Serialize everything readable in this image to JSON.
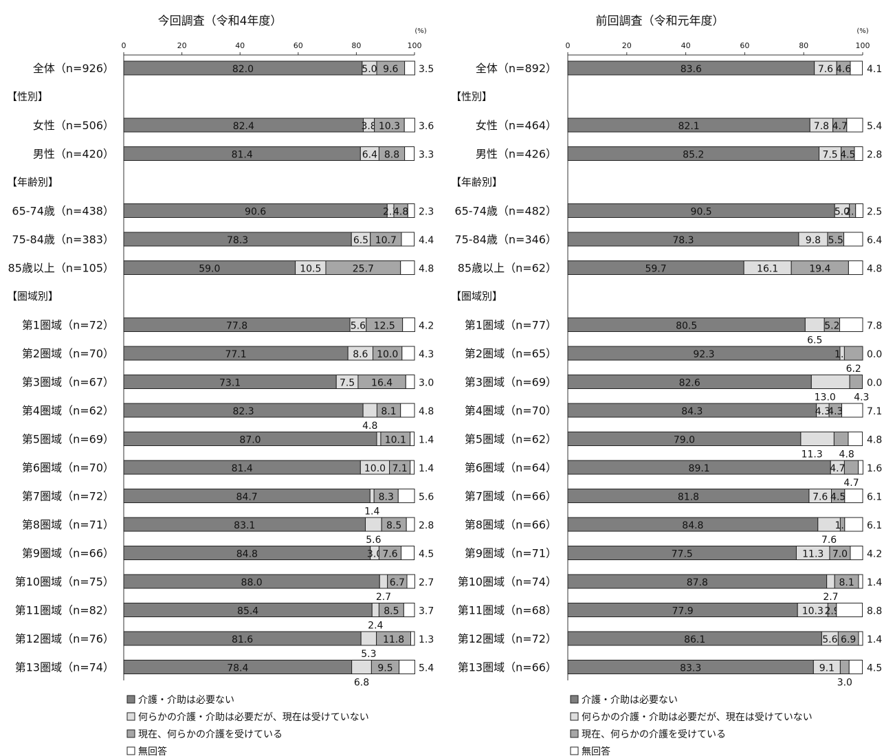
{
  "chart_data": [
    {
      "type": "stacked-horizontal-bar",
      "title": "今回調査（令和4年度）",
      "unit_label": "(%)",
      "xlim": [
        0,
        100
      ],
      "xticks": [
        0,
        20,
        40,
        60,
        80,
        100
      ],
      "colors": [
        "#7f7f7f",
        "#dedede",
        "#a6a6a6",
        "#ffffff"
      ],
      "series_names": [
        "介護・介助は必要ない",
        "何らかの介護・介助は必要だが、現在は受けていない",
        "現在、何らかの介護を受けている",
        "無回答"
      ],
      "rows": [
        {
          "type": "bar",
          "label": "全体（n=926）",
          "values": [
            82.0,
            5.0,
            9.6,
            3.5
          ]
        },
        {
          "type": "section",
          "label": "【性別】"
        },
        {
          "type": "bar",
          "label": "女性（n=506）",
          "values": [
            82.4,
            3.8,
            10.3,
            3.6
          ]
        },
        {
          "type": "bar",
          "label": "男性（n=420）",
          "values": [
            81.4,
            6.4,
            8.8,
            3.3
          ]
        },
        {
          "type": "section",
          "label": "【年齢別】"
        },
        {
          "type": "bar",
          "label": "65-74歳（n=438）",
          "values": [
            90.6,
            2.3,
            4.8,
            2.3
          ]
        },
        {
          "type": "bar",
          "label": "75-84歳（n=383）",
          "values": [
            78.3,
            6.5,
            10.7,
            4.4
          ]
        },
        {
          "type": "bar",
          "label": "85歳以上（n=105）",
          "values": [
            59.0,
            10.5,
            25.7,
            4.8
          ]
        },
        {
          "type": "section",
          "label": "【圏域別】"
        },
        {
          "type": "bar",
          "label": "第1圏域（n=72）",
          "values": [
            77.8,
            5.6,
            12.5,
            4.2
          ]
        },
        {
          "type": "bar",
          "label": "第2圏域（n=70）",
          "values": [
            77.1,
            8.6,
            10.0,
            4.3
          ]
        },
        {
          "type": "bar",
          "label": "第3圏域（n=67）",
          "values": [
            73.1,
            7.5,
            16.4,
            3.0
          ]
        },
        {
          "type": "bar",
          "label": "第4圏域（n=62）",
          "values": [
            82.3,
            4.8,
            8.1,
            4.8
          ]
        },
        {
          "type": "bar",
          "label": "第5圏域（n=69）",
          "values": [
            87.0,
            1.4,
            10.1,
            1.4
          ]
        },
        {
          "type": "bar",
          "label": "第6圏域（n=70）",
          "values": [
            81.4,
            10.0,
            7.1,
            1.4
          ]
        },
        {
          "type": "bar",
          "label": "第7圏域（n=72）",
          "values": [
            84.7,
            1.4,
            8.3,
            5.6
          ]
        },
        {
          "type": "bar",
          "label": "第8圏域（n=71）",
          "values": [
            83.1,
            5.6,
            8.5,
            2.8
          ]
        },
        {
          "type": "bar",
          "label": "第9圏域（n=66）",
          "values": [
            84.8,
            3.0,
            7.6,
            4.5
          ]
        },
        {
          "type": "bar",
          "label": "第10圏域（n=75）",
          "values": [
            88.0,
            2.7,
            6.7,
            2.7
          ]
        },
        {
          "type": "bar",
          "label": "第11圏域（n=82）",
          "values": [
            85.4,
            2.4,
            8.5,
            3.7
          ]
        },
        {
          "type": "bar",
          "label": "第12圏域（n=76）",
          "values": [
            81.6,
            5.3,
            11.8,
            1.3
          ]
        },
        {
          "type": "bar",
          "label": "第13圏域（n=74）",
          "values": [
            78.4,
            6.8,
            9.5,
            5.4
          ]
        }
      ]
    },
    {
      "type": "stacked-horizontal-bar",
      "title": "前回調査（令和元年度）",
      "unit_label": "(%)",
      "xlim": [
        0,
        100
      ],
      "xticks": [
        0,
        20,
        40,
        60,
        80,
        100
      ],
      "colors": [
        "#7f7f7f",
        "#dedede",
        "#a6a6a6",
        "#ffffff"
      ],
      "series_names": [
        "介護・介助は必要ない",
        "何らかの介護・介助は必要だが、現在は受けていない",
        "現在、何らかの介護を受けている",
        "無回答"
      ],
      "rows": [
        {
          "type": "bar",
          "label": "全体（n=892）",
          "values": [
            83.6,
            7.6,
            4.6,
            4.1
          ]
        },
        {
          "type": "section",
          "label": "【性別】"
        },
        {
          "type": "bar",
          "label": "女性（n=464）",
          "values": [
            82.1,
            7.8,
            4.7,
            5.4
          ]
        },
        {
          "type": "bar",
          "label": "男性（n=426）",
          "values": [
            85.2,
            7.5,
            4.5,
            2.8
          ]
        },
        {
          "type": "section",
          "label": "【年齢別】"
        },
        {
          "type": "bar",
          "label": "65-74歳（n=482）",
          "values": [
            90.5,
            5.0,
            2.1,
            2.5
          ]
        },
        {
          "type": "bar",
          "label": "75-84歳（n=346）",
          "values": [
            78.3,
            9.8,
            5.5,
            6.4
          ]
        },
        {
          "type": "bar",
          "label": "85歳以上（n=62）",
          "values": [
            59.7,
            16.1,
            19.4,
            4.8
          ]
        },
        {
          "type": "section",
          "label": "【圏域別】"
        },
        {
          "type": "bar",
          "label": "第1圏域（n=77）",
          "values": [
            80.5,
            6.5,
            5.2,
            7.8
          ]
        },
        {
          "type": "bar",
          "label": "第2圏域（n=65）",
          "values": [
            92.3,
            1.5,
            6.2,
            0.0
          ]
        },
        {
          "type": "bar",
          "label": "第3圏域（n=69）",
          "values": [
            82.6,
            13.0,
            4.3,
            0.0
          ]
        },
        {
          "type": "bar",
          "label": "第4圏域（n=70）",
          "values": [
            84.3,
            4.3,
            4.3,
            7.1
          ]
        },
        {
          "type": "bar",
          "label": "第5圏域（n=62）",
          "values": [
            79.0,
            11.3,
            4.8,
            4.8
          ]
        },
        {
          "type": "bar",
          "label": "第6圏域（n=64）",
          "values": [
            89.1,
            4.7,
            4.7,
            1.6
          ]
        },
        {
          "type": "bar",
          "label": "第7圏域（n=66）",
          "values": [
            81.8,
            7.6,
            4.5,
            6.1
          ]
        },
        {
          "type": "bar",
          "label": "第8圏域（n=66）",
          "values": [
            84.8,
            7.6,
            1.5,
            6.1
          ]
        },
        {
          "type": "bar",
          "label": "第9圏域（n=71）",
          "values": [
            77.5,
            11.3,
            7.0,
            4.2
          ]
        },
        {
          "type": "bar",
          "label": "第10圏域（n=74）",
          "values": [
            87.8,
            2.7,
            8.1,
            1.4
          ]
        },
        {
          "type": "bar",
          "label": "第11圏域（n=68）",
          "values": [
            77.9,
            10.3,
            2.9,
            8.8
          ]
        },
        {
          "type": "bar",
          "label": "第12圏域（n=72）",
          "values": [
            86.1,
            5.6,
            6.9,
            1.4
          ]
        },
        {
          "type": "bar",
          "label": "第13圏域（n=66）",
          "values": [
            83.3,
            9.1,
            3.0,
            4.5
          ]
        }
      ]
    }
  ],
  "label_overrides": [
    {
      "0-4": {
        "hide": [
          1
        ]
      },
      "0-12": {
        "below": [
          1
        ]
      },
      "0-13": {
        "hide": [
          1
        ]
      },
      "0-15": {
        "below": [
          1
        ]
      },
      "0-16": {
        "below": [
          1
        ]
      },
      "0-18": {
        "below": [
          1
        ]
      },
      "0-19": {
        "below": [
          1
        ]
      },
      "0-20": {
        "below": [
          1
        ]
      },
      "0-21": {
        "below": [
          1
        ]
      }
    },
    {
      "1-4": {
        "hide": [
          1
        ]
      },
      "1-9": {
        "below": [
          1
        ]
      },
      "1-10": {
        "below": [
          2
        ]
      },
      "1-11": {
        "below": [
          1,
          2
        ]
      },
      "1-13": {
        "below": [
          1,
          2
        ]
      },
      "1-14": {
        "below": [
          2
        ]
      },
      "1-16": {
        "below": [
          1
        ]
      },
      "1-18": {
        "below": [
          1
        ]
      },
      "1-21": {
        "below": [
          2
        ]
      }
    }
  ]
}
